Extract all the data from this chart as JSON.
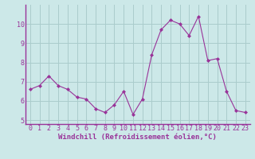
{
  "x": [
    0,
    1,
    2,
    3,
    4,
    5,
    6,
    7,
    8,
    9,
    10,
    11,
    12,
    13,
    14,
    15,
    16,
    17,
    18,
    19,
    20,
    21,
    22,
    23
  ],
  "y": [
    6.6,
    6.8,
    7.3,
    6.8,
    6.6,
    6.2,
    6.1,
    5.6,
    5.4,
    5.8,
    6.5,
    5.3,
    6.1,
    8.4,
    9.7,
    10.2,
    10.0,
    9.4,
    10.4,
    8.1,
    8.2,
    6.5,
    5.5,
    5.4
  ],
  "line_color": "#993399",
  "marker": "D",
  "marker_size": 2.0,
  "bg_color": "#cce8e8",
  "grid_color": "#aacccc",
  "xlabel": "Windchill (Refroidissement éolien,°C)",
  "ylim": [
    4.8,
    11.0
  ],
  "xlim": [
    -0.5,
    23.5
  ],
  "yticks": [
    5,
    6,
    7,
    8,
    9,
    10
  ],
  "xticks": [
    0,
    1,
    2,
    3,
    4,
    5,
    6,
    7,
    8,
    9,
    10,
    11,
    12,
    13,
    14,
    15,
    16,
    17,
    18,
    19,
    20,
    21,
    22,
    23
  ],
  "xlabel_fontsize": 6.5,
  "tick_fontsize": 6.0
}
